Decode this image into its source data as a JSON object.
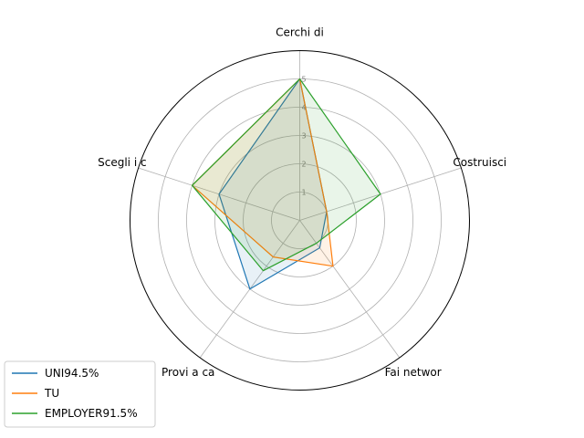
{
  "chart_data": {
    "type": "radar",
    "axes": [
      "Cerchi di",
      "Costruisci",
      "Fai networ",
      "Provi a ca",
      "Scegli i c"
    ],
    "rlim": [
      0,
      6
    ],
    "ticks": [
      "1",
      "2",
      "3",
      "4",
      "5"
    ],
    "grid": true,
    "legend_position": "lower-left",
    "series": [
      {
        "name": "UNI94.5%",
        "color": "#1f77b4",
        "values": [
          5.0,
          1.0,
          1.2,
          3.0,
          3.0
        ],
        "fill_alpha": 0.1
      },
      {
        "name": "TU",
        "color": "#ff7f0e",
        "values": [
          5.0,
          1.0,
          2.0,
          1.6,
          4.0
        ],
        "fill_alpha": 0.1
      },
      {
        "name": "EMPLOYER91.5%",
        "color": "#2ca02c",
        "values": [
          5.0,
          3.0,
          1.0,
          2.2,
          4.0
        ],
        "fill_alpha": 0.1
      }
    ]
  }
}
